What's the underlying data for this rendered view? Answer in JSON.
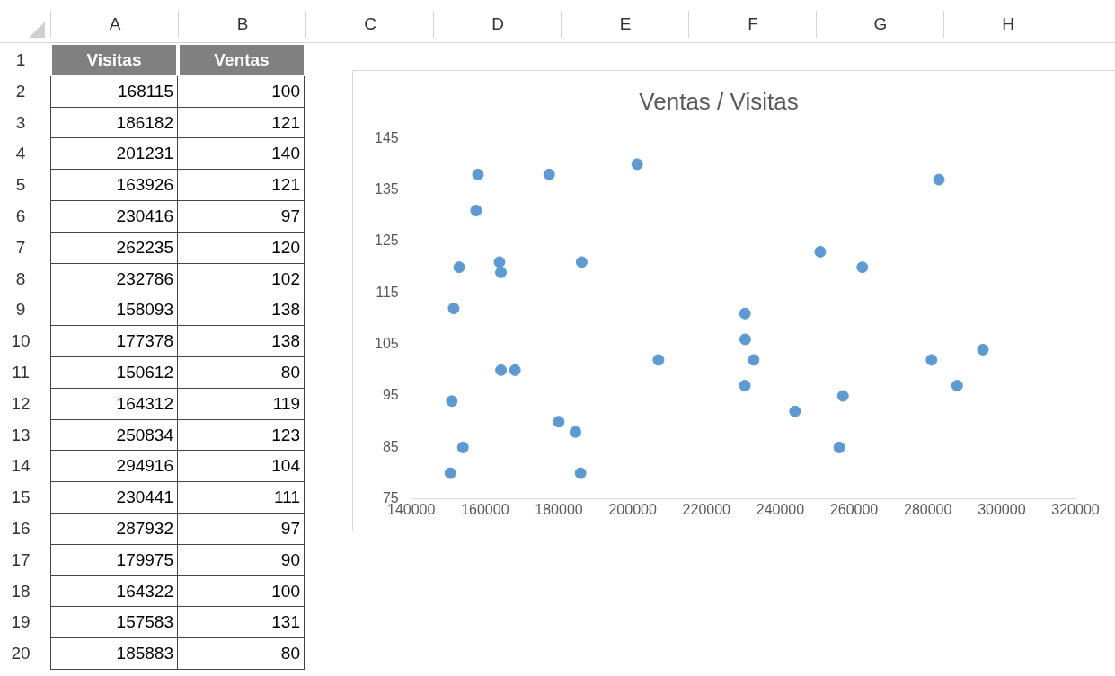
{
  "chart_data": [
    {
      "type": "heatmap",
      "data_labels": true,
      "categories": [
        "Visitas",
        "Ventas"
      ],
      "y_categories": [
        "1",
        "2",
        "3",
        "4",
        "5",
        "6",
        "7",
        "8",
        "9",
        "10",
        "11",
        "12",
        "13",
        "14",
        "15",
        "16",
        "17",
        "18",
        "19",
        "20"
      ],
      "cells": [
        [
          null,
          null
        ],
        [
          168115,
          100
        ],
        [
          186182,
          121
        ],
        [
          201231,
          140
        ],
        [
          163926,
          121
        ],
        [
          230416,
          97
        ],
        [
          262235,
          120
        ],
        [
          232786,
          102
        ],
        [
          158093,
          138
        ],
        [
          177378,
          138
        ],
        [
          150612,
          80
        ],
        [
          164312,
          119
        ],
        [
          250834,
          123
        ],
        [
          294916,
          104
        ],
        [
          230441,
          111
        ],
        [
          287932,
          97
        ],
        [
          179975,
          90
        ],
        [
          164322,
          100
        ],
        [
          157583,
          131
        ],
        [
          185883,
          80
        ]
      ],
      "annotations": [
        "A",
        "B",
        "C",
        "D",
        "E",
        "F",
        "G",
        "H"
      ]
    },
    {
      "type": "scatter",
      "title": "Ventas / Visitas",
      "color": "#5b9bd5",
      "marker": "circle",
      "x": [
        168115,
        186182,
        201231,
        163926,
        230416,
        262235,
        232786,
        158093,
        177378,
        150612,
        164312,
        250834,
        294916,
        230441,
        287932,
        179975,
        164322,
        157583,
        185883,
        153000,
        151500,
        151000,
        154000,
        184500,
        207000,
        230500,
        244000,
        257000,
        256000,
        283000,
        281000
      ],
      "values": [
        100,
        121,
        140,
        121,
        97,
        120,
        102,
        138,
        138,
        80,
        119,
        123,
        104,
        111,
        97,
        90,
        100,
        131,
        80,
        120,
        112,
        94,
        85,
        88,
        102,
        106,
        92,
        95,
        85,
        137,
        102
      ],
      "xlim": [
        140000,
        320000
      ],
      "xticks": [
        140000,
        160000,
        180000,
        200000,
        220000,
        240000,
        260000,
        280000,
        300000,
        320000
      ],
      "ylim": [
        75,
        145
      ],
      "yticks": [
        75,
        85,
        95,
        105,
        115,
        125,
        135,
        145
      ]
    }
  ]
}
